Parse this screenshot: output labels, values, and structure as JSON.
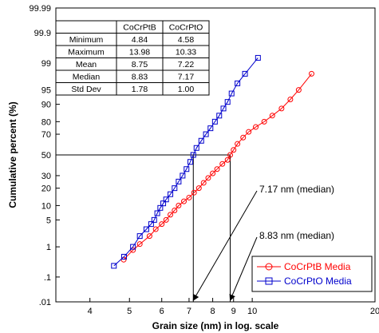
{
  "chart_data": {
    "type": "scatter",
    "title": "",
    "xlabel": "Grain size (nm) in log. scale",
    "ylabel": "Cumulative percent (%)",
    "x_scale": "log",
    "y_scale": "normal-probability",
    "xlim": [
      3.3,
      20
    ],
    "ylim": [
      0.01,
      99.99
    ],
    "x_ticks": [
      4,
      5,
      6,
      7,
      8,
      9,
      10,
      20
    ],
    "x_tick_labels": [
      "4",
      "5",
      "6",
      "7",
      "8",
      "9",
      "10",
      "20"
    ],
    "y_ticks": [
      0.01,
      0.1,
      1,
      5,
      10,
      20,
      30,
      50,
      70,
      80,
      90,
      95,
      99,
      99.9,
      99.99
    ],
    "y_tick_labels": [
      ".01",
      ".1",
      "1",
      "5",
      "10",
      "20",
      "30",
      "50",
      "70",
      "80",
      "90",
      "95",
      "99",
      "99.9",
      "99.99"
    ],
    "legend_position": "bottom-right",
    "series": [
      {
        "name": "CoCrPtB Media",
        "color": "#ff0000",
        "marker": "circle",
        "points": [
          [
            4.84,
            0.4
          ],
          [
            5.1,
            0.8
          ],
          [
            5.3,
            1.2
          ],
          [
            5.6,
            2
          ],
          [
            5.8,
            3
          ],
          [
            6.0,
            4
          ],
          [
            6.15,
            5
          ],
          [
            6.3,
            6.5
          ],
          [
            6.45,
            8
          ],
          [
            6.6,
            10
          ],
          [
            6.8,
            12
          ],
          [
            7.0,
            14
          ],
          [
            7.2,
            17
          ],
          [
            7.4,
            20
          ],
          [
            7.6,
            24
          ],
          [
            7.8,
            28
          ],
          [
            8.0,
            32
          ],
          [
            8.2,
            36
          ],
          [
            8.45,
            41
          ],
          [
            8.7,
            45
          ],
          [
            8.83,
            50
          ],
          [
            9.0,
            55
          ],
          [
            9.2,
            61
          ],
          [
            9.5,
            67
          ],
          [
            9.8,
            72
          ],
          [
            10.2,
            76
          ],
          [
            10.7,
            80
          ],
          [
            11.2,
            84
          ],
          [
            11.8,
            88
          ],
          [
            12.4,
            92
          ],
          [
            13.0,
            95
          ],
          [
            13.98,
            98
          ]
        ]
      },
      {
        "name": "CoCrPtO Media",
        "color": "#0000cc",
        "marker": "square",
        "points": [
          [
            4.58,
            0.25
          ],
          [
            4.85,
            0.5
          ],
          [
            5.1,
            1
          ],
          [
            5.3,
            2
          ],
          [
            5.5,
            3
          ],
          [
            5.65,
            4
          ],
          [
            5.75,
            5
          ],
          [
            5.85,
            7
          ],
          [
            5.95,
            9
          ],
          [
            6.05,
            11
          ],
          [
            6.15,
            13
          ],
          [
            6.3,
            16
          ],
          [
            6.45,
            20
          ],
          [
            6.6,
            25
          ],
          [
            6.75,
            30
          ],
          [
            6.9,
            36
          ],
          [
            7.05,
            43
          ],
          [
            7.17,
            50
          ],
          [
            7.3,
            57
          ],
          [
            7.5,
            64
          ],
          [
            7.7,
            70
          ],
          [
            7.9,
            75
          ],
          [
            8.1,
            80
          ],
          [
            8.3,
            84
          ],
          [
            8.5,
            88
          ],
          [
            8.7,
            91
          ],
          [
            8.9,
            94
          ],
          [
            9.2,
            96.5
          ],
          [
            9.6,
            98
          ],
          [
            10.33,
            99.3
          ]
        ]
      }
    ],
    "reference_lines": {
      "median_percent": 50,
      "median_x": [
        7.17,
        8.83
      ]
    },
    "annotations": [
      {
        "text": "7.17 nm (median)",
        "target_x": 7.17
      },
      {
        "text": "8.83 nm (median)",
        "target_x": 8.83
      }
    ],
    "stats_table": {
      "columns": [
        "",
        "CoCrPtB",
        "CoCrPtO"
      ],
      "rows": [
        [
          "Minimum",
          "4.84",
          "4.58"
        ],
        [
          "Maximum",
          "13.98",
          "10.33"
        ],
        [
          "Mean",
          "8.75",
          "7.22"
        ],
        [
          "Median",
          "8.83",
          "7.17"
        ],
        [
          "Std Dev",
          "1.78",
          "1.00"
        ]
      ]
    }
  }
}
